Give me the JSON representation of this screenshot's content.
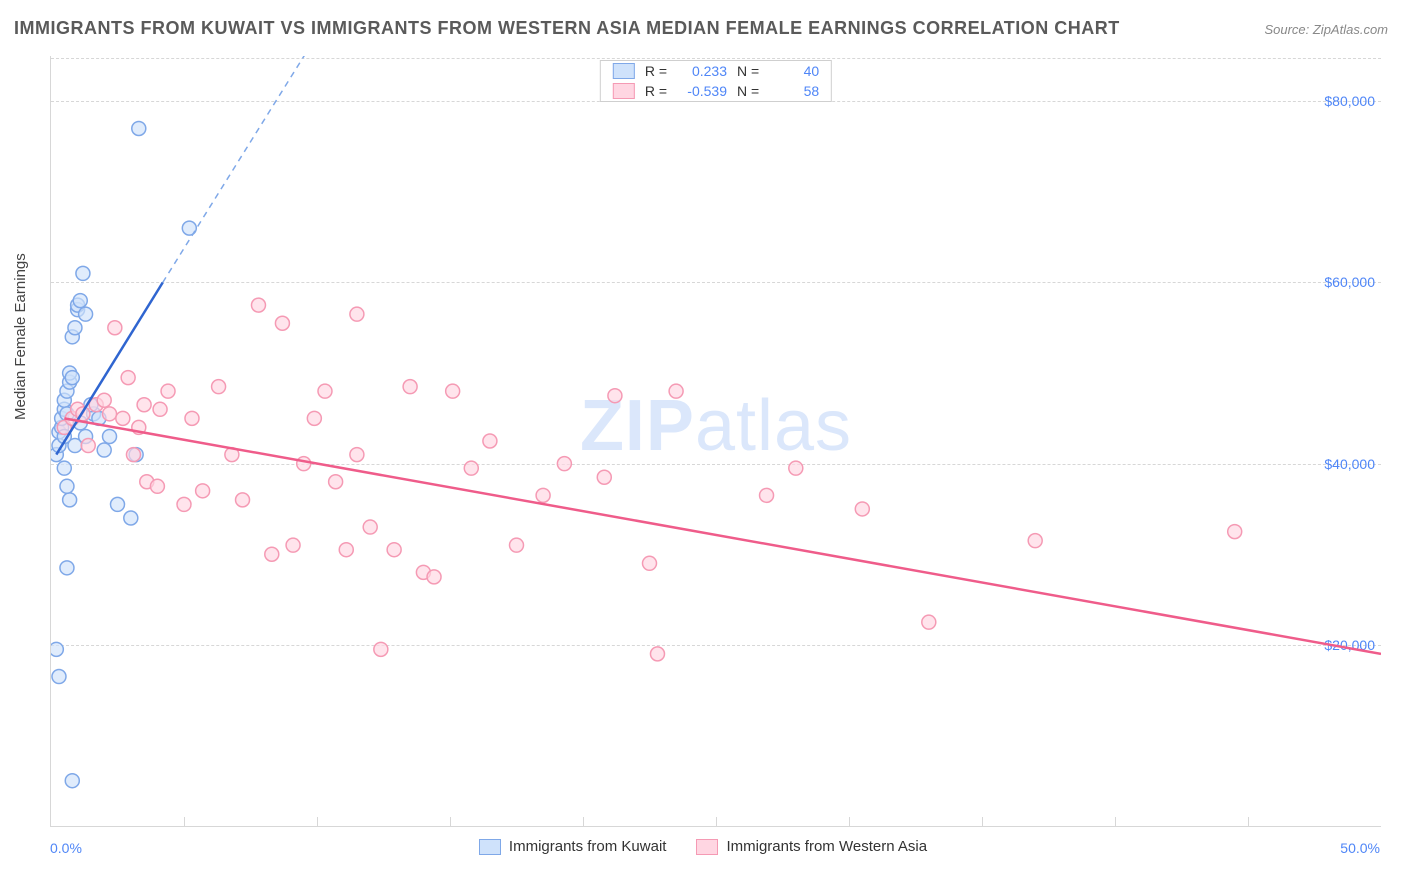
{
  "title": "IMMIGRANTS FROM KUWAIT VS IMMIGRANTS FROM WESTERN ASIA MEDIAN FEMALE EARNINGS CORRELATION CHART",
  "source": "Source: ZipAtlas.com",
  "watermark_bold": "ZIP",
  "watermark_rest": "atlas",
  "y_axis_title": "Median Female Earnings",
  "x_axis": {
    "min_label": "0.0%",
    "max_label": "50.0%",
    "min": 0,
    "max": 50
  },
  "y_axis": {
    "ticks": [
      {
        "value": 20000,
        "label": "$20,000"
      },
      {
        "value": 40000,
        "label": "$40,000"
      },
      {
        "value": 60000,
        "label": "$60,000"
      },
      {
        "value": 80000,
        "label": "$80,000"
      }
    ],
    "min": 0,
    "max": 85000
  },
  "x_ticks_at": [
    5,
    10,
    15,
    20,
    25,
    30,
    35,
    40,
    45
  ],
  "series": [
    {
      "name": "Immigrants from Kuwait",
      "fill": "#cfe2fb",
      "stroke": "#7fa8e8",
      "line": "#2f65d0",
      "R": "0.233",
      "N": "40",
      "trend": {
        "x1": 0.2,
        "y1": 41000,
        "x2": 4.2,
        "y2": 60000,
        "dash_x2": 11.0,
        "dash_y2": 92000
      },
      "points": [
        [
          0.2,
          41000
        ],
        [
          0.3,
          42000
        ],
        [
          0.3,
          43500
        ],
        [
          0.4,
          44000
        ],
        [
          0.5,
          43000
        ],
        [
          0.4,
          45000
        ],
        [
          0.5,
          46000
        ],
        [
          0.5,
          47000
        ],
        [
          0.6,
          45500
        ],
        [
          0.6,
          48000
        ],
        [
          0.7,
          49000
        ],
        [
          0.7,
          50000
        ],
        [
          0.8,
          49500
        ],
        [
          0.8,
          54000
        ],
        [
          0.9,
          55000
        ],
        [
          1.0,
          57000
        ],
        [
          1.0,
          57500
        ],
        [
          1.1,
          58000
        ],
        [
          1.2,
          61000
        ],
        [
          1.3,
          56500
        ],
        [
          1.6,
          45500
        ],
        [
          1.8,
          45000
        ],
        [
          2.0,
          41500
        ],
        [
          2.2,
          43000
        ],
        [
          2.5,
          35500
        ],
        [
          3.0,
          34000
        ],
        [
          3.2,
          41000
        ],
        [
          3.3,
          77000
        ],
        [
          5.2,
          66000
        ],
        [
          0.2,
          19500
        ],
        [
          0.3,
          16500
        ],
        [
          0.6,
          28500
        ],
        [
          0.8,
          5000
        ],
        [
          0.7,
          36000
        ],
        [
          0.6,
          37500
        ],
        [
          0.5,
          39500
        ],
        [
          0.9,
          42000
        ],
        [
          1.1,
          44500
        ],
        [
          1.3,
          43000
        ],
        [
          1.5,
          46500
        ]
      ]
    },
    {
      "name": "Immigrants from Western Asia",
      "fill": "#ffd6e2",
      "stroke": "#f59ab4",
      "line": "#ef5c8a",
      "R": "-0.539",
      "N": "58",
      "trend": {
        "x1": 0.5,
        "y1": 45000,
        "x2": 50,
        "y2": 19000
      },
      "points": [
        [
          0.5,
          44000
        ],
        [
          0.8,
          45000
        ],
        [
          1.0,
          46000
        ],
        [
          1.2,
          45500
        ],
        [
          1.4,
          42000
        ],
        [
          1.7,
          46500
        ],
        [
          2.0,
          47000
        ],
        [
          2.2,
          45500
        ],
        [
          2.4,
          55000
        ],
        [
          2.7,
          45000
        ],
        [
          3.1,
          41000
        ],
        [
          3.5,
          46500
        ],
        [
          3.6,
          38000
        ],
        [
          4.0,
          37500
        ],
        [
          4.4,
          48000
        ],
        [
          5.0,
          35500
        ],
        [
          5.3,
          45000
        ],
        [
          5.7,
          37000
        ],
        [
          6.3,
          48500
        ],
        [
          6.8,
          41000
        ],
        [
          7.2,
          36000
        ],
        [
          7.8,
          57500
        ],
        [
          8.3,
          30000
        ],
        [
          8.7,
          55500
        ],
        [
          9.1,
          31000
        ],
        [
          9.5,
          40000
        ],
        [
          9.9,
          45000
        ],
        [
          10.3,
          48000
        ],
        [
          10.7,
          38000
        ],
        [
          11.1,
          30500
        ],
        [
          11.5,
          41000
        ],
        [
          11.5,
          56500
        ],
        [
          12.0,
          33000
        ],
        [
          12.4,
          19500
        ],
        [
          12.9,
          30500
        ],
        [
          13.5,
          48500
        ],
        [
          14.0,
          28000
        ],
        [
          14.4,
          27500
        ],
        [
          15.1,
          48000
        ],
        [
          15.8,
          39500
        ],
        [
          16.5,
          42500
        ],
        [
          17.5,
          31000
        ],
        [
          18.5,
          36500
        ],
        [
          19.3,
          40000
        ],
        [
          20.8,
          38500
        ],
        [
          21.2,
          47500
        ],
        [
          22.5,
          29000
        ],
        [
          22.8,
          19000
        ],
        [
          23.5,
          48000
        ],
        [
          26.9,
          36500
        ],
        [
          28.0,
          39500
        ],
        [
          30.5,
          35000
        ],
        [
          33.0,
          22500
        ],
        [
          37.0,
          31500
        ],
        [
          44.5,
          32500
        ],
        [
          2.9,
          49500
        ],
        [
          3.3,
          44000
        ],
        [
          4.1,
          46000
        ]
      ]
    }
  ],
  "legend_top_labels": {
    "R": "R = ",
    "N": "N = "
  },
  "colors": {
    "grid": "#d7d7d7",
    "axis_value": "#4f86f7",
    "title_color": "#5a5a5a",
    "background": "#ffffff"
  },
  "marker_radius": 7,
  "marker_stroke_width": 1.5,
  "line_width_solid": 2.5,
  "line_width_dash": 1.5,
  "dash_pattern": "6,5"
}
